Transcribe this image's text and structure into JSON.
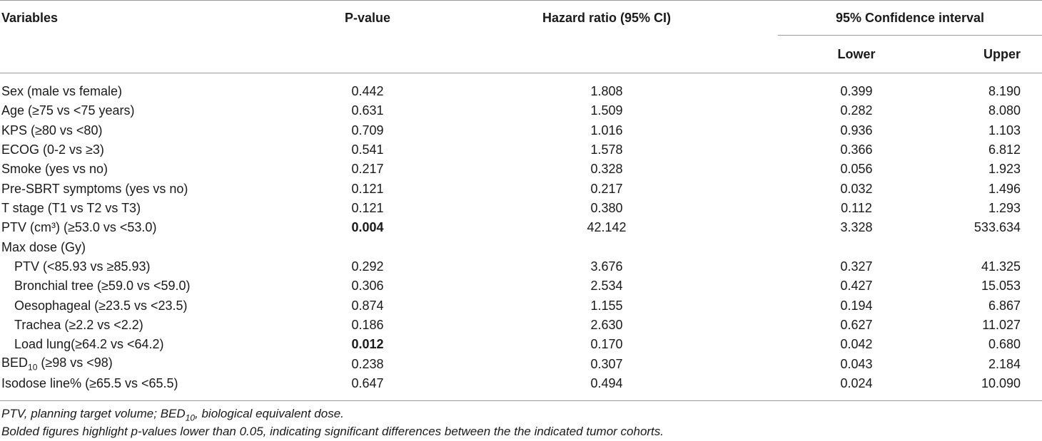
{
  "headers": {
    "variables": "Variables",
    "p_value": "P-value",
    "hazard_ratio": "Hazard ratio (95% CI)",
    "confidence_interval": "95% Confidence interval",
    "lower": "Lower",
    "upper": "Upper"
  },
  "rows": [
    {
      "variable": "Sex (male vs female)",
      "p": "0.442",
      "hr": "1.808",
      "lower": "0.399",
      "upper": "8.190",
      "bold_p": false,
      "indent": false
    },
    {
      "variable": "Age (≥75 vs <75 years)",
      "p": "0.631",
      "hr": "1.509",
      "lower": "0.282",
      "upper": "8.080",
      "bold_p": false,
      "indent": false
    },
    {
      "variable": "KPS (≥80 vs <80)",
      "p": "0.709",
      "hr": "1.016",
      "lower": "0.936",
      "upper": "1.103",
      "bold_p": false,
      "indent": false
    },
    {
      "variable": "ECOG (0-2 vs ≥3)",
      "p": "0.541",
      "hr": "1.578",
      "lower": "0.366",
      "upper": "6.812",
      "bold_p": false,
      "indent": false
    },
    {
      "variable": "Smoke (yes vs no)",
      "p": "0.217",
      "hr": "0.328",
      "lower": "0.056",
      "upper": "1.923",
      "bold_p": false,
      "indent": false
    },
    {
      "variable": "Pre-SBRT symptoms (yes vs no)",
      "p": "0.121",
      "hr": "0.217",
      "lower": "0.032",
      "upper": "1.496",
      "bold_p": false,
      "indent": false
    },
    {
      "variable": "T stage (T1 vs T2 vs T3)",
      "p": "0.121",
      "hr": "0.380",
      "lower": "0.112",
      "upper": "1.293",
      "bold_p": false,
      "indent": false
    },
    {
      "variable": "PTV (cm³) (≥53.0 vs <53.0)",
      "p": "0.004",
      "hr": "42.142",
      "lower": "3.328",
      "upper": "533.634",
      "bold_p": true,
      "indent": false
    },
    {
      "variable": "Max dose (Gy)",
      "p": "",
      "hr": "",
      "lower": "",
      "upper": "",
      "bold_p": false,
      "indent": false
    },
    {
      "variable": "PTV (<85.93 vs ≥85.93)",
      "p": "0.292",
      "hr": "3.676",
      "lower": "0.327",
      "upper": "41.325",
      "bold_p": false,
      "indent": true
    },
    {
      "variable": "Bronchial tree (≥59.0 vs <59.0)",
      "p": "0.306",
      "hr": "2.534",
      "lower": "0.427",
      "upper": "15.053",
      "bold_p": false,
      "indent": true
    },
    {
      "variable": "Oesophageal (≥23.5 vs <23.5)",
      "p": "0.874",
      "hr": "1.155",
      "lower": "0.194",
      "upper": "6.867",
      "bold_p": false,
      "indent": true
    },
    {
      "variable": "Trachea (≥2.2 vs <2.2)",
      "p": "0.186",
      "hr": "2.630",
      "lower": "0.627",
      "upper": "11.027",
      "bold_p": false,
      "indent": true
    },
    {
      "variable": "Load lung(≥64.2 vs <64.2)",
      "p": "0.012",
      "hr": "0.170",
      "lower": "0.042",
      "upper": "0.680",
      "bold_p": true,
      "indent": true
    },
    {
      "variable": "BED",
      "variable_sub": "10",
      "variable_suffix": " (≥98 vs <98)",
      "p": "0.238",
      "hr": "0.307",
      "lower": "0.043",
      "upper": "2.184",
      "bold_p": false,
      "indent": false
    },
    {
      "variable": "Isodose line% (≥65.5 vs <65.5)",
      "p": "0.647",
      "hr": "0.494",
      "lower": "0.024",
      "upper": "10.090",
      "bold_p": false,
      "indent": false
    }
  ],
  "footnotes": {
    "line1_a": "PTV, planning target volume; BED",
    "line1_sub": "10",
    "line1_b": ", biological equivalent dose.",
    "line2": "Bolded figures highlight p-values lower than 0.05, indicating significant differences between the the indicated tumor cohorts."
  }
}
